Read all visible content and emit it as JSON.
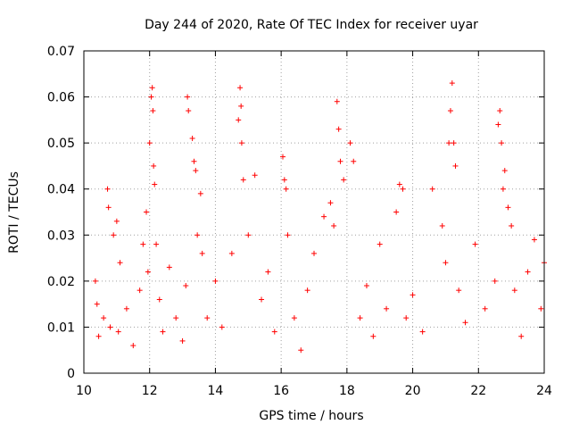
{
  "chart_data": {
    "type": "scatter",
    "title": "Day 244 of 2020, Rate Of TEC Index for receiver uyar",
    "xlabel": "GPS time / hours",
    "ylabel": "ROTI / TECUs",
    "xlim": [
      10,
      24
    ],
    "ylim": [
      0,
      0.07
    ],
    "xticks": [
      "10",
      "12",
      "14",
      "16",
      "18",
      "20",
      "22",
      "24"
    ],
    "yticks": [
      "0",
      "0.01",
      "0.02",
      "0.03",
      "0.04",
      "0.05",
      "0.06",
      "0.07"
    ],
    "grid": true,
    "marker": "plus",
    "color": "#ff0000",
    "series": [
      {
        "x": [
          10.35,
          10.4,
          10.45,
          10.6,
          10.72,
          10.75,
          10.8,
          10.9,
          11.0,
          11.05,
          11.1,
          11.3,
          11.5,
          11.7,
          11.8,
          11.9,
          11.95,
          12.0,
          12.05,
          12.08,
          12.1,
          12.12,
          12.15,
          12.2,
          12.3,
          12.4,
          12.6,
          12.8,
          13.0,
          13.1,
          13.15,
          13.18,
          13.3,
          13.35,
          13.4,
          13.45,
          13.55,
          13.6,
          13.75,
          14.0,
          14.2,
          14.5,
          14.7,
          14.75,
          14.78,
          14.8,
          14.85,
          15.0,
          15.2,
          15.4,
          15.6,
          15.8,
          16.05,
          16.1,
          16.15,
          16.2,
          16.4,
          16.6,
          16.8,
          17.0,
          17.3,
          17.5,
          17.6,
          17.7,
          17.75,
          17.8,
          17.9,
          18.1,
          18.2,
          18.4,
          18.6,
          18.8,
          19.0,
          19.2,
          19.5,
          19.6,
          19.7,
          19.8,
          20.0,
          20.3,
          20.6,
          20.9,
          21.0,
          21.1,
          21.15,
          21.2,
          21.25,
          21.3,
          21.4,
          21.6,
          21.9,
          22.2,
          22.5,
          22.6,
          22.65,
          22.7,
          22.75,
          22.8,
          22.9,
          23.0,
          23.1,
          23.3,
          23.5,
          23.7,
          23.9,
          24.0
        ],
        "y": [
          0.02,
          0.015,
          0.008,
          0.012,
          0.04,
          0.036,
          0.01,
          0.03,
          0.033,
          0.009,
          0.024,
          0.014,
          0.006,
          0.018,
          0.028,
          0.035,
          0.022,
          0.05,
          0.06,
          0.062,
          0.057,
          0.045,
          0.041,
          0.028,
          0.016,
          0.009,
          0.023,
          0.012,
          0.007,
          0.019,
          0.06,
          0.057,
          0.051,
          0.046,
          0.044,
          0.03,
          0.039,
          0.026,
          0.012,
          0.02,
          0.01,
          0.026,
          0.055,
          0.062,
          0.058,
          0.05,
          0.042,
          0.03,
          0.043,
          0.016,
          0.022,
          0.009,
          0.047,
          0.042,
          0.04,
          0.03,
          0.012,
          0.005,
          0.018,
          0.026,
          0.034,
          0.037,
          0.032,
          0.059,
          0.053,
          0.046,
          0.042,
          0.05,
          0.046,
          0.012,
          0.019,
          0.008,
          0.028,
          0.014,
          0.035,
          0.041,
          0.04,
          0.012,
          0.017,
          0.009,
          0.04,
          0.032,
          0.024,
          0.05,
          0.057,
          0.063,
          0.05,
          0.045,
          0.018,
          0.011,
          0.028,
          0.014,
          0.02,
          0.054,
          0.057,
          0.05,
          0.04,
          0.044,
          0.036,
          0.032,
          0.018,
          0.008,
          0.022,
          0.029,
          0.014,
          0.024
        ]
      }
    ]
  }
}
